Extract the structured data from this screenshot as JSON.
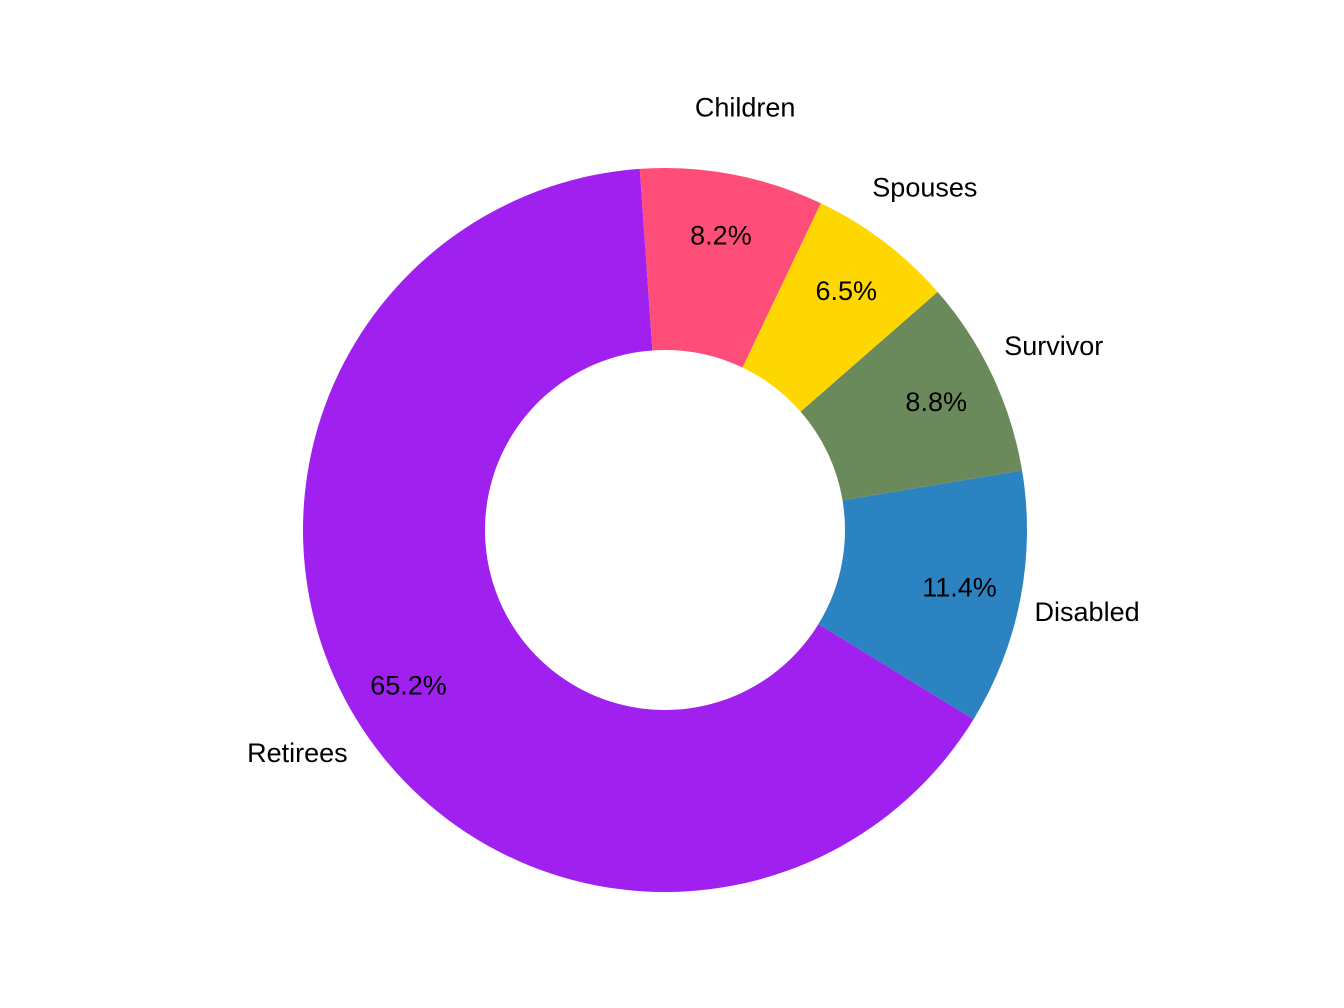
{
  "chart_data": {
    "type": "pie",
    "donut": true,
    "categories": [
      "Retirees",
      "Disabled",
      "Survivor",
      "Spouses",
      "Children"
    ],
    "values": [
      65.2,
      11.4,
      8.8,
      6.5,
      8.2
    ],
    "value_labels": [
      "65.2%",
      "11.4%",
      "8.8%",
      "6.5%",
      "8.2%"
    ],
    "colors": [
      "#A020F0",
      "#2B83C1",
      "#6B8A5C",
      "#FFD700",
      "#FF4D79"
    ],
    "title": "",
    "legend": "none"
  }
}
